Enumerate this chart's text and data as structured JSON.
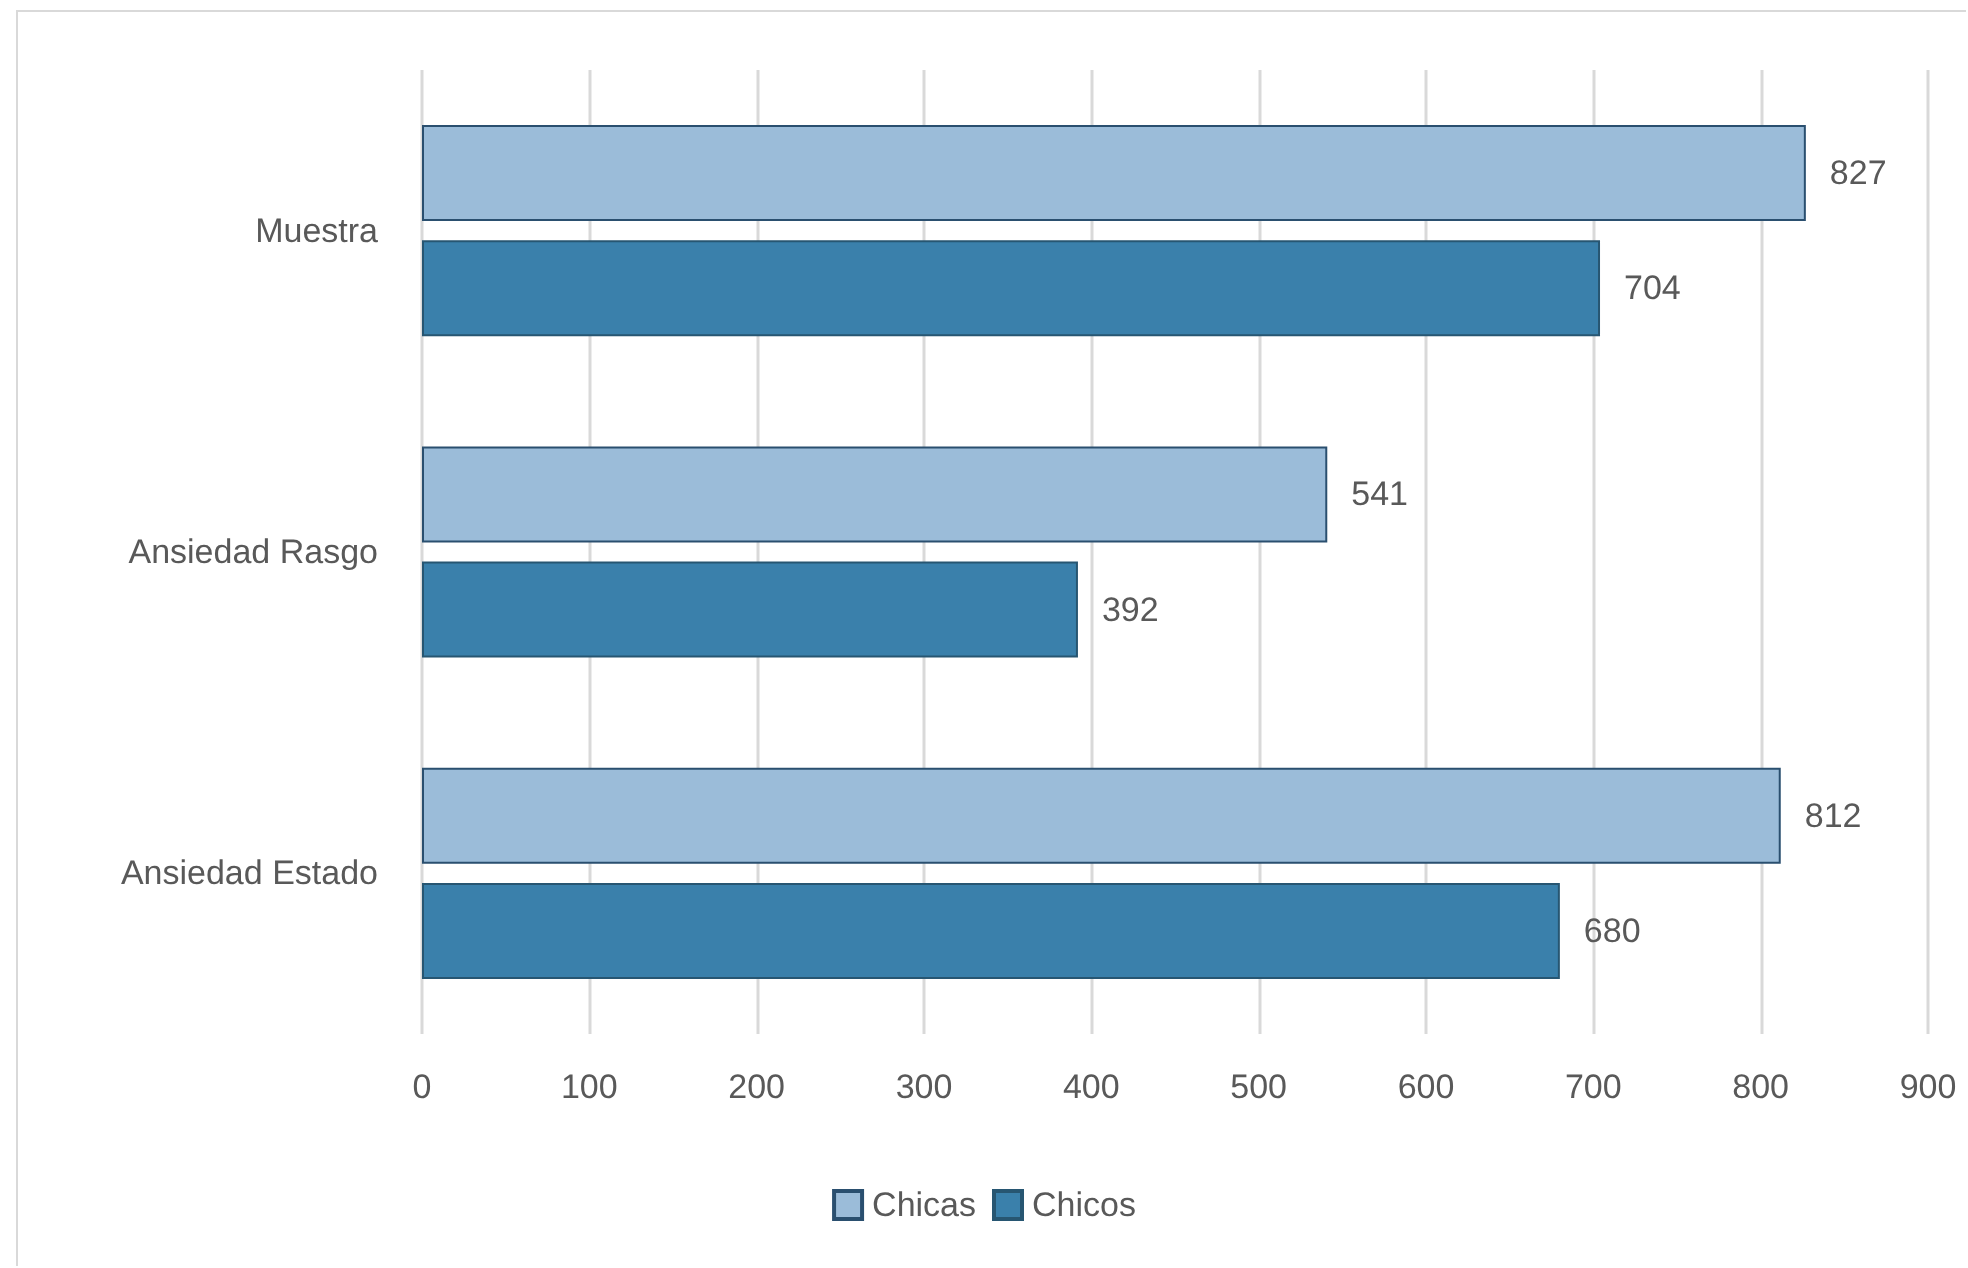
{
  "chart_data": {
    "type": "bar",
    "orientation": "horizontal",
    "categories": [
      "Muestra",
      "Ansiedad Rasgo",
      "Ansiedad Estado"
    ],
    "series": [
      {
        "name": "Chicas",
        "color": "#9bbcd9",
        "values": [
          827,
          541,
          812
        ]
      },
      {
        "name": "Chicos",
        "color": "#3a80ab",
        "values": [
          704,
          392,
          680
        ]
      }
    ],
    "xlim": [
      0,
      900
    ],
    "xticks": [
      0,
      100,
      200,
      300,
      400,
      500,
      600,
      700,
      800,
      900
    ],
    "grid": "x",
    "legend": "bottom",
    "data_labels": true
  }
}
